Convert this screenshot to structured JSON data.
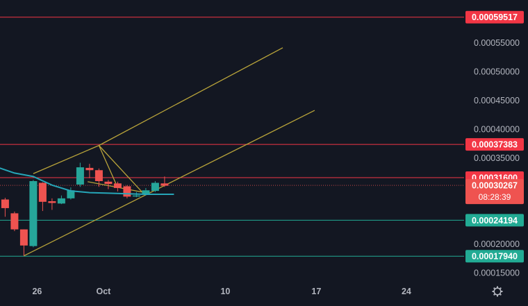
{
  "chart_data": {
    "type": "candlestick",
    "title": "",
    "x_ticks": [
      "26",
      "Oct",
      "10",
      "17",
      "24"
    ],
    "y_ticks": [
      "0.00055000",
      "0.00050000",
      "0.00045000",
      "0.00040000",
      "0.00035000",
      "0.00020000",
      "0.00015000"
    ],
    "ylim": [
      0.000135,
      0.000625
    ],
    "grid": false,
    "candles": [
      {
        "x": 0,
        "open": 0.000278,
        "close": 0.000263,
        "high": 0.000281,
        "low": 0.000248
      },
      {
        "x": 1,
        "open": 0.000254,
        "close": 0.000226,
        "high": 0.000257,
        "low": 0.000223
      },
      {
        "x": 2,
        "open": 0.000226,
        "close": 0.000198,
        "high": 0.000226,
        "low": 0.00018
      },
      {
        "x": 3,
        "open": 0.000197,
        "close": 0.00031,
        "high": 0.000312,
        "low": 0.000195
      },
      {
        "x": 4,
        "open": 0.000307,
        "close": 0.000274,
        "high": 0.000308,
        "low": 0.000258
      },
      {
        "x": 5,
        "open": 0.000275,
        "close": 0.000272,
        "high": 0.00028,
        "low": 0.00026
      },
      {
        "x": 6,
        "open": 0.000271,
        "close": 0.00028,
        "high": 0.000285,
        "low": 0.00027
      },
      {
        "x": 7,
        "open": 0.00028,
        "close": 0.000294,
        "high": 0.000299,
        "low": 0.000278
      },
      {
        "x": 8,
        "open": 0.000304,
        "close": 0.000334,
        "high": 0.000342,
        "low": 0.0003
      },
      {
        "x": 9,
        "open": 0.000333,
        "close": 0.000329,
        "high": 0.00034,
        "low": 0.000315
      },
      {
        "x": 10,
        "open": 0.000329,
        "close": 0.00031,
        "high": 0.000332,
        "low": 0.0003
      },
      {
        "x": 11,
        "open": 0.000309,
        "close": 0.000305,
        "high": 0.000312,
        "low": 0.000296
      },
      {
        "x": 12,
        "open": 0.000306,
        "close": 0.000298,
        "high": 0.000309,
        "low": 0.000292
      },
      {
        "x": 13,
        "open": 0.000301,
        "close": 0.000283,
        "high": 0.000303,
        "low": 0.00028
      },
      {
        "x": 14,
        "open": 0.000284,
        "close": 0.000285,
        "high": 0.000291,
        "low": 0.000282
      },
      {
        "x": 15,
        "open": 0.000287,
        "close": 0.000294,
        "high": 0.000298,
        "low": 0.000285
      },
      {
        "x": 16,
        "open": 0.000293,
        "close": 0.000307,
        "high": 0.00031,
        "low": 0.000291
      },
      {
        "x": 17,
        "open": 0.000306,
        "close": 0.000302,
        "high": 0.000318,
        "low": 0.0003
      }
    ],
    "moving_average": {
      "color": "#26a6b8",
      "points": [
        {
          "x": -3,
          "y": 0.000336
        },
        {
          "x": -1,
          "y": 0.000335
        },
        {
          "x": 1,
          "y": 0.000324
        },
        {
          "x": 3,
          "y": 0.000318
        },
        {
          "x": 5,
          "y": 0.000303
        },
        {
          "x": 7,
          "y": 0.000293
        },
        {
          "x": 9,
          "y": 0.00029
        },
        {
          "x": 11,
          "y": 0.000289
        },
        {
          "x": 13,
          "y": 0.000288
        },
        {
          "x": 15,
          "y": 0.000287
        },
        {
          "x": 17,
          "y": 0.000287
        },
        {
          "x": 18,
          "y": 0.000287
        }
      ]
    },
    "trend_lines": {
      "color": "#b9a43a",
      "lines": [
        {
          "x1": 3,
          "y1": 0.000323,
          "x2": 10,
          "y2": 0.000372
        },
        {
          "x1": 10,
          "y1": 0.000372,
          "x2": 29.6,
          "y2": 0.000542
        },
        {
          "x1": 2,
          "y1": 0.00018,
          "x2": 33,
          "y2": 0.000433
        },
        {
          "x1": 10,
          "y1": 0.000372,
          "x2": 14.6,
          "y2": 0.000291
        },
        {
          "x1": 10,
          "y1": 0.000372,
          "x2": 11.8,
          "y2": 0.000306
        },
        {
          "x1": 8.8,
          "y1": 0.000309,
          "x2": 14.6,
          "y2": 0.000291
        }
      ]
    },
    "horizontal_levels": [
      {
        "value": 0.00059517,
        "label": "0.00059517",
        "color": "#f23645"
      },
      {
        "value": 0.00037383,
        "label": "0.00037383",
        "color": "#f23645"
      },
      {
        "value": 0.000316,
        "label": "0.00031600",
        "color": "#f23645"
      },
      {
        "value": 0.00024194,
        "label": "0.00024194",
        "color": "#22ab94"
      },
      {
        "value": 0.0001794,
        "label": "0.00017940",
        "color": "#22ab94"
      }
    ],
    "last_price": {
      "value": 0.00030267,
      "label": "0.00030267",
      "countdown": "08:28:39"
    },
    "colors": {
      "up": "#26a69a",
      "down": "#ef5350",
      "background": "#131722",
      "axis_text": "#b2b5be"
    }
  },
  "settings_icon": "gear-icon"
}
